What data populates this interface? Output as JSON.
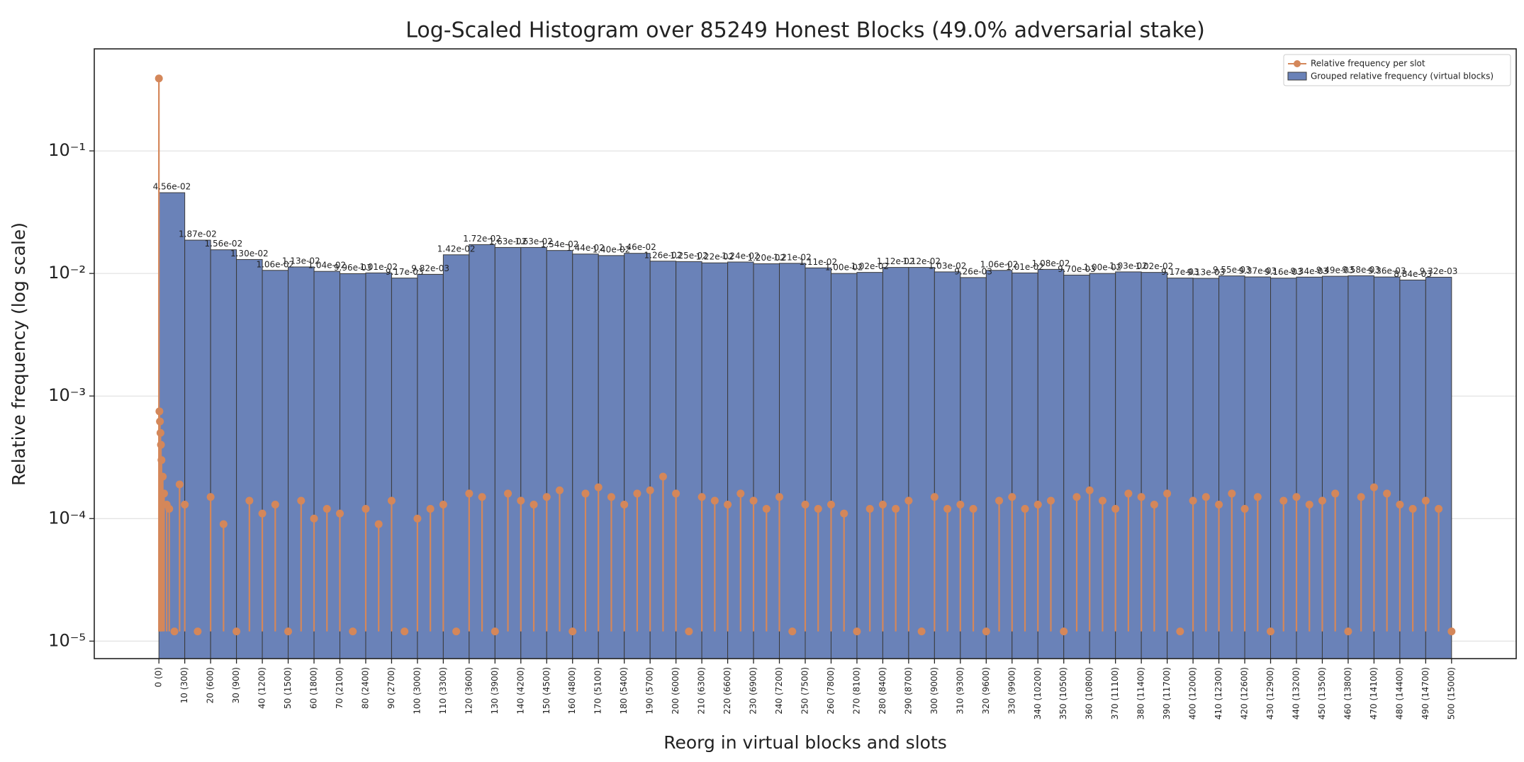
{
  "chart_data": {
    "type": "histogram",
    "title": "Log-Scaled Histogram over 85249 Honest Blocks (49.0% adversarial stake)",
    "x_label": "Reorg in virtual blocks and slots",
    "y_label": "Relative frequency (log scale)",
    "name": "Grouped relative frequency (virtual blocks)",
    "color": "#6a82b8",
    "edge_color": "#3a3a3a",
    "log_y": true,
    "grid": true,
    "legend": "upper right",
    "bins": [
      0,
      10,
      20,
      30,
      40,
      50,
      60,
      70,
      80,
      90,
      100,
      110,
      120,
      130,
      140,
      150,
      160,
      170,
      180,
      190,
      200,
      210,
      220,
      230,
      240,
      250,
      260,
      270,
      280,
      290,
      300,
      310,
      320,
      330,
      340,
      350,
      360,
      370,
      380,
      390,
      400,
      410,
      420,
      430,
      440,
      450,
      460,
      470,
      480,
      490,
      500
    ],
    "values": [
      0.0456,
      0.0187,
      0.0156,
      0.013,
      0.0106,
      0.0113,
      0.0104,
      0.00996,
      0.0101,
      0.00917,
      0.00982,
      0.0142,
      0.0172,
      0.0163,
      0.0163,
      0.0154,
      0.0144,
      0.014,
      0.0146,
      0.0126,
      0.0125,
      0.0122,
      0.0124,
      0.012,
      0.0121,
      0.0111,
      0.01,
      0.0102,
      0.0112,
      0.0112,
      0.0103,
      0.00926,
      0.0106,
      0.0101,
      0.0108,
      0.0097,
      0.01,
      0.0103,
      0.0102,
      0.00917,
      0.00913,
      0.00955,
      0.00937,
      0.00916,
      0.00934,
      0.00949,
      0.00958,
      0.00936,
      0.00884,
      0.00932
    ],
    "value_labels": [
      "4.56e-02",
      "1.87e-02",
      "1.56e-02",
      "1.30e-02",
      "1.06e-02",
      "1.13e-02",
      "1.04e-02",
      "9.96e-03",
      "1.01e-02",
      "9.17e-03",
      "9.82e-03",
      "1.42e-02",
      "1.72e-02",
      "1.63e-02",
      "1.63e-02",
      "1.54e-02",
      "1.44e-02",
      "1.40e-02",
      "1.46e-02",
      "1.26e-02",
      "1.25e-02",
      "1.22e-02",
      "1.24e-02",
      "1.20e-02",
      "1.21e-02",
      "1.11e-02",
      "1.00e-02",
      "1.02e-02",
      "1.12e-02",
      "1.12e-02",
      "1.03e-02",
      "9.26e-03",
      "1.06e-02",
      "1.01e-02",
      "1.08e-02",
      "9.70e-03",
      "1.00e-02",
      "1.03e-02",
      "1.02e-02",
      "9.17e-03",
      "9.13e-03",
      "9.55e-03",
      "9.37e-03",
      "9.16e-03",
      "9.34e-03",
      "9.49e-03",
      "9.58e-03",
      "9.36e-03",
      "8.84e-03",
      "9.32e-03"
    ],
    "overlay": {
      "type": "stem",
      "name": "Relative frequency per slot",
      "color": "#d4875a",
      "x": [
        0,
        0.2,
        0.4,
        0.6,
        0.8,
        1,
        1.5,
        2,
        3,
        4,
        6,
        8,
        10,
        15,
        20,
        25,
        30,
        35,
        40,
        45,
        50,
        55,
        60,
        65,
        70,
        75,
        80,
        85,
        90,
        95,
        100,
        105,
        110,
        115,
        120,
        125,
        130,
        135,
        140,
        145,
        150,
        155,
        160,
        165,
        170,
        175,
        180,
        185,
        190,
        195,
        200,
        205,
        210,
        215,
        220,
        225,
        230,
        235,
        240,
        245,
        250,
        255,
        260,
        265,
        270,
        275,
        280,
        285,
        290,
        295,
        300,
        305,
        310,
        315,
        320,
        325,
        330,
        335,
        340,
        345,
        350,
        355,
        360,
        365,
        370,
        375,
        380,
        385,
        390,
        395,
        400,
        405,
        410,
        415,
        420,
        425,
        430,
        435,
        440,
        445,
        450,
        455,
        460,
        465,
        470,
        475,
        480,
        485,
        490,
        495,
        500
      ],
      "values": [
        0.39,
        0.00075,
        0.00062,
        0.0005,
        0.0004,
        0.0003,
        0.00022,
        0.00016,
        0.00013,
        0.00012,
        1.2e-05,
        0.00019,
        0.00013,
        1.2e-05,
        0.00015,
        9e-05,
        1.2e-05,
        0.00014,
        0.00011,
        0.00013,
        1.2e-05,
        0.00014,
        0.0001,
        0.00012,
        0.00011,
        1.2e-05,
        0.00012,
        9e-05,
        0.00014,
        1.2e-05,
        0.0001,
        0.00012,
        0.00013,
        1.2e-05,
        0.00016,
        0.00015,
        1.2e-05,
        0.00016,
        0.00014,
        0.00013,
        0.00015,
        0.00017,
        1.2e-05,
        0.00016,
        0.00018,
        0.00015,
        0.00013,
        0.00016,
        0.00017,
        0.00022,
        0.00016,
        1.2e-05,
        0.00015,
        0.00014,
        0.00013,
        0.00016,
        0.00014,
        0.00012,
        0.00015,
        1.2e-05,
        0.00013,
        0.00012,
        0.00013,
        0.00011,
        1.2e-05,
        0.00012,
        0.00013,
        0.00012,
        0.00014,
        1.2e-05,
        0.00015,
        0.00012,
        0.00013,
        0.00012,
        1.2e-05,
        0.00014,
        0.00015,
        0.00012,
        0.00013,
        0.00014,
        1.2e-05,
        0.00015,
        0.00017,
        0.00014,
        0.00012,
        0.00016,
        0.00015,
        0.00013,
        0.00016,
        1.2e-05,
        0.00014,
        0.00015,
        0.00013,
        0.00016,
        0.00012,
        0.00015,
        1.2e-05,
        0.00014,
        0.00015,
        0.00013,
        0.00014,
        0.00016,
        1.2e-05,
        0.00015,
        0.00018,
        0.00016,
        0.00013,
        0.00012,
        0.00014,
        0.00012,
        1.2e-05
      ],
      "marker_floor": 1.2e-05
    },
    "xlim": [
      -25,
      525
    ],
    "ylim": [
      7.2e-06,
      0.68
    ],
    "xticks": [
      {
        "value": 0,
        "label": "0 (0)"
      },
      {
        "value": 10,
        "label": "10 (300)"
      },
      {
        "value": 20,
        "label": "20 (600)"
      },
      {
        "value": 30,
        "label": "30 (900)"
      },
      {
        "value": 40,
        "label": "40 (1200)"
      },
      {
        "value": 50,
        "label": "50 (1500)"
      },
      {
        "value": 60,
        "label": "60 (1800)"
      },
      {
        "value": 70,
        "label": "70 (2100)"
      },
      {
        "value": 80,
        "label": "80 (2400)"
      },
      {
        "value": 90,
        "label": "90 (2700)"
      },
      {
        "value": 100,
        "label": "100 (3000)"
      },
      {
        "value": 110,
        "label": "110 (3300)"
      },
      {
        "value": 120,
        "label": "120 (3600)"
      },
      {
        "value": 130,
        "label": "130 (3900)"
      },
      {
        "value": 140,
        "label": "140 (4200)"
      },
      {
        "value": 150,
        "label": "150 (4500)"
      },
      {
        "value": 160,
        "label": "160 (4800)"
      },
      {
        "value": 170,
        "label": "170 (5100)"
      },
      {
        "value": 180,
        "label": "180 (5400)"
      },
      {
        "value": 190,
        "label": "190 (5700)"
      },
      {
        "value": 200,
        "label": "200 (6000)"
      },
      {
        "value": 210,
        "label": "210 (6300)"
      },
      {
        "value": 220,
        "label": "220 (6600)"
      },
      {
        "value": 230,
        "label": "230 (6900)"
      },
      {
        "value": 240,
        "label": "240 (7200)"
      },
      {
        "value": 250,
        "label": "250 (7500)"
      },
      {
        "value": 260,
        "label": "260 (7800)"
      },
      {
        "value": 270,
        "label": "270 (8100)"
      },
      {
        "value": 280,
        "label": "280 (8400)"
      },
      {
        "value": 290,
        "label": "290 (8700)"
      },
      {
        "value": 300,
        "label": "300 (9000)"
      },
      {
        "value": 310,
        "label": "310 (9300)"
      },
      {
        "value": 320,
        "label": "320 (9600)"
      },
      {
        "value": 330,
        "label": "330 (9900)"
      },
      {
        "value": 340,
        "label": "340 (10200)"
      },
      {
        "value": 350,
        "label": "350 (10500)"
      },
      {
        "value": 360,
        "label": "360 (10800)"
      },
      {
        "value": 370,
        "label": "370 (11100)"
      },
      {
        "value": 380,
        "label": "380 (11400)"
      },
      {
        "value": 390,
        "label": "390 (11700)"
      },
      {
        "value": 400,
        "label": "400 (12000)"
      },
      {
        "value": 410,
        "label": "410 (12300)"
      },
      {
        "value": 420,
        "label": "420 (12600)"
      },
      {
        "value": 430,
        "label": "430 (12900)"
      },
      {
        "value": 440,
        "label": "440 (13200)"
      },
      {
        "value": 450,
        "label": "450 (13500)"
      },
      {
        "value": 460,
        "label": "460 (13800)"
      },
      {
        "value": 470,
        "label": "470 (14100)"
      },
      {
        "value": 480,
        "label": "480 (14400)"
      },
      {
        "value": 490,
        "label": "490 (14700)"
      },
      {
        "value": 500,
        "label": "500 (15000)"
      }
    ],
    "yticks": [
      {
        "value": 1e-05,
        "label": "10⁻⁵"
      },
      {
        "value": 0.0001,
        "label": "10⁻⁴"
      },
      {
        "value": 0.001,
        "label": "10⁻³"
      },
      {
        "value": 0.01,
        "label": "10⁻²"
      },
      {
        "value": 0.1,
        "label": "10⁻¹"
      }
    ]
  }
}
